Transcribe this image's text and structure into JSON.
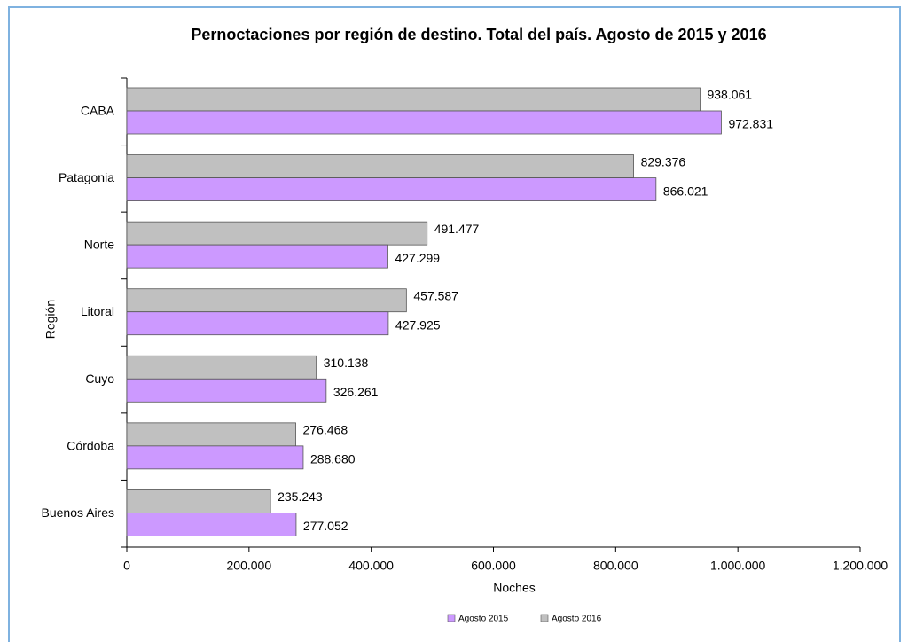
{
  "chart_data": {
    "type": "hbar",
    "title": "Pernoctaciones por región de destino. Total del país. Agosto de 2015 y 2016",
    "xlabel": "Noches",
    "ylabel": "Región",
    "categories": [
      "CABA",
      "Patagonia",
      "Norte",
      "Litoral",
      "Cuyo",
      "Córdoba",
      "Buenos Aires"
    ],
    "series": [
      {
        "name": "Agosto 2015",
        "color": "#cc99ff",
        "values": [
          972831,
          866021,
          427299,
          427925,
          326261,
          288680,
          277052
        ],
        "value_labels": [
          "972.831",
          "866.021",
          "427.299",
          "427.925",
          "326.261",
          "288.680",
          "277.052"
        ]
      },
      {
        "name": "Agosto 2016",
        "color": "#c0c0c0",
        "values": [
          938061,
          829376,
          491477,
          457587,
          310138,
          276468,
          235243
        ],
        "value_labels": [
          "938.061",
          "829.376",
          "491.477",
          "457.587",
          "310.138",
          "276.468",
          "235.243"
        ]
      }
    ],
    "xlim": [
      0,
      1200000
    ],
    "xticks": [
      0,
      {
        "value": 200000,
        "label": "200.000"
      },
      {
        "value": 400000,
        "label": "400.000"
      },
      {
        "value": 600000,
        "label": "600.000"
      },
      {
        "value": 800000,
        "label": "800.000"
      },
      {
        "value": 1000000,
        "label": "1.000.000"
      },
      {
        "value": 1200000,
        "label": "1.200.000"
      }
    ],
    "legend": "bottom"
  }
}
